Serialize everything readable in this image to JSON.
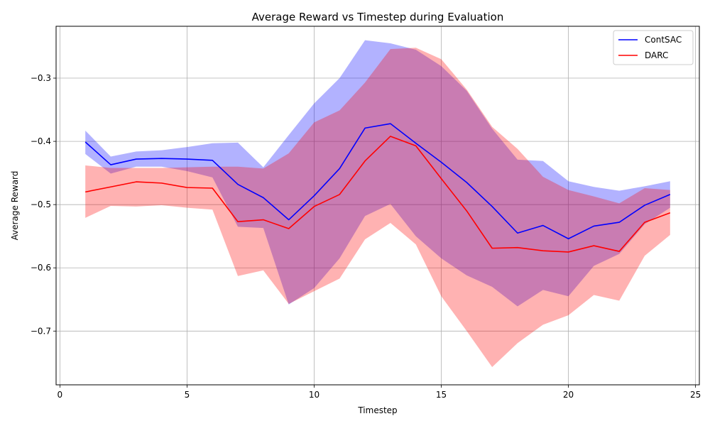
{
  "chart_data": {
    "type": "line",
    "title": "Average Reward vs Timestep during Evaluation",
    "xlabel": "Timestep",
    "ylabel": "Average Reward",
    "xlim": [
      -0.15,
      25.15
    ],
    "ylim": [
      -0.785,
      -0.218
    ],
    "xticks": [
      0,
      5,
      10,
      15,
      20,
      25
    ],
    "yticks": [
      -0.7,
      -0.6,
      -0.5,
      -0.4,
      -0.3
    ],
    "grid": true,
    "legend_position": "top-right",
    "x": [
      1,
      2,
      3,
      4,
      5,
      6,
      7,
      8,
      9,
      10,
      11,
      12,
      13,
      14,
      15,
      16,
      17,
      18,
      19,
      20,
      21,
      22,
      23,
      24
    ],
    "series": [
      {
        "name": "ContSAC",
        "color": "#0000ff",
        "fill_color": "#0000ff",
        "values": [
          -0.401,
          -0.437,
          -0.428,
          -0.427,
          -0.428,
          -0.43,
          -0.468,
          -0.489,
          -0.524,
          -0.486,
          -0.443,
          -0.379,
          -0.372,
          -0.403,
          -0.433,
          -0.465,
          -0.503,
          -0.545,
          -0.533,
          -0.554,
          -0.534,
          -0.528,
          -0.501,
          -0.484
        ],
        "upper": [
          -0.383,
          -0.424,
          -0.416,
          -0.414,
          -0.409,
          -0.403,
          -0.402,
          -0.441,
          -0.39,
          -0.34,
          -0.3,
          -0.24,
          -0.245,
          -0.255,
          -0.281,
          -0.32,
          -0.38,
          -0.429,
          -0.431,
          -0.463,
          -0.472,
          -0.478,
          -0.471,
          -0.463
        ],
        "lower": [
          -0.42,
          -0.451,
          -0.44,
          -0.44,
          -0.447,
          -0.457,
          -0.535,
          -0.537,
          -0.658,
          -0.632,
          -0.585,
          -0.518,
          -0.499,
          -0.55,
          -0.585,
          -0.612,
          -0.63,
          -0.661,
          -0.635,
          -0.645,
          -0.597,
          -0.578,
          -0.531,
          -0.505
        ]
      },
      {
        "name": "DARC",
        "color": "#ff0000",
        "fill_color": "#ff0000",
        "values": [
          -0.48,
          -0.472,
          -0.464,
          -0.466,
          -0.473,
          -0.474,
          -0.527,
          -0.524,
          -0.538,
          -0.503,
          -0.484,
          -0.431,
          -0.392,
          -0.407,
          -0.459,
          -0.51,
          -0.569,
          -0.568,
          -0.573,
          -0.575,
          -0.565,
          -0.574,
          -0.528,
          -0.513
        ],
        "upper": [
          -0.438,
          -0.442,
          -0.442,
          -0.442,
          -0.441,
          -0.44,
          -0.44,
          -0.443,
          -0.419,
          -0.37,
          -0.351,
          -0.307,
          -0.254,
          -0.252,
          -0.27,
          -0.318,
          -0.377,
          -0.412,
          -0.456,
          -0.477,
          -0.487,
          -0.498,
          -0.474,
          -0.477
        ],
        "lower": [
          -0.521,
          -0.502,
          -0.503,
          -0.501,
          -0.505,
          -0.508,
          -0.613,
          -0.604,
          -0.657,
          -0.637,
          -0.617,
          -0.555,
          -0.529,
          -0.563,
          -0.645,
          -0.7,
          -0.757,
          -0.719,
          -0.69,
          -0.675,
          -0.643,
          -0.652,
          -0.581,
          -0.548
        ]
      }
    ]
  }
}
